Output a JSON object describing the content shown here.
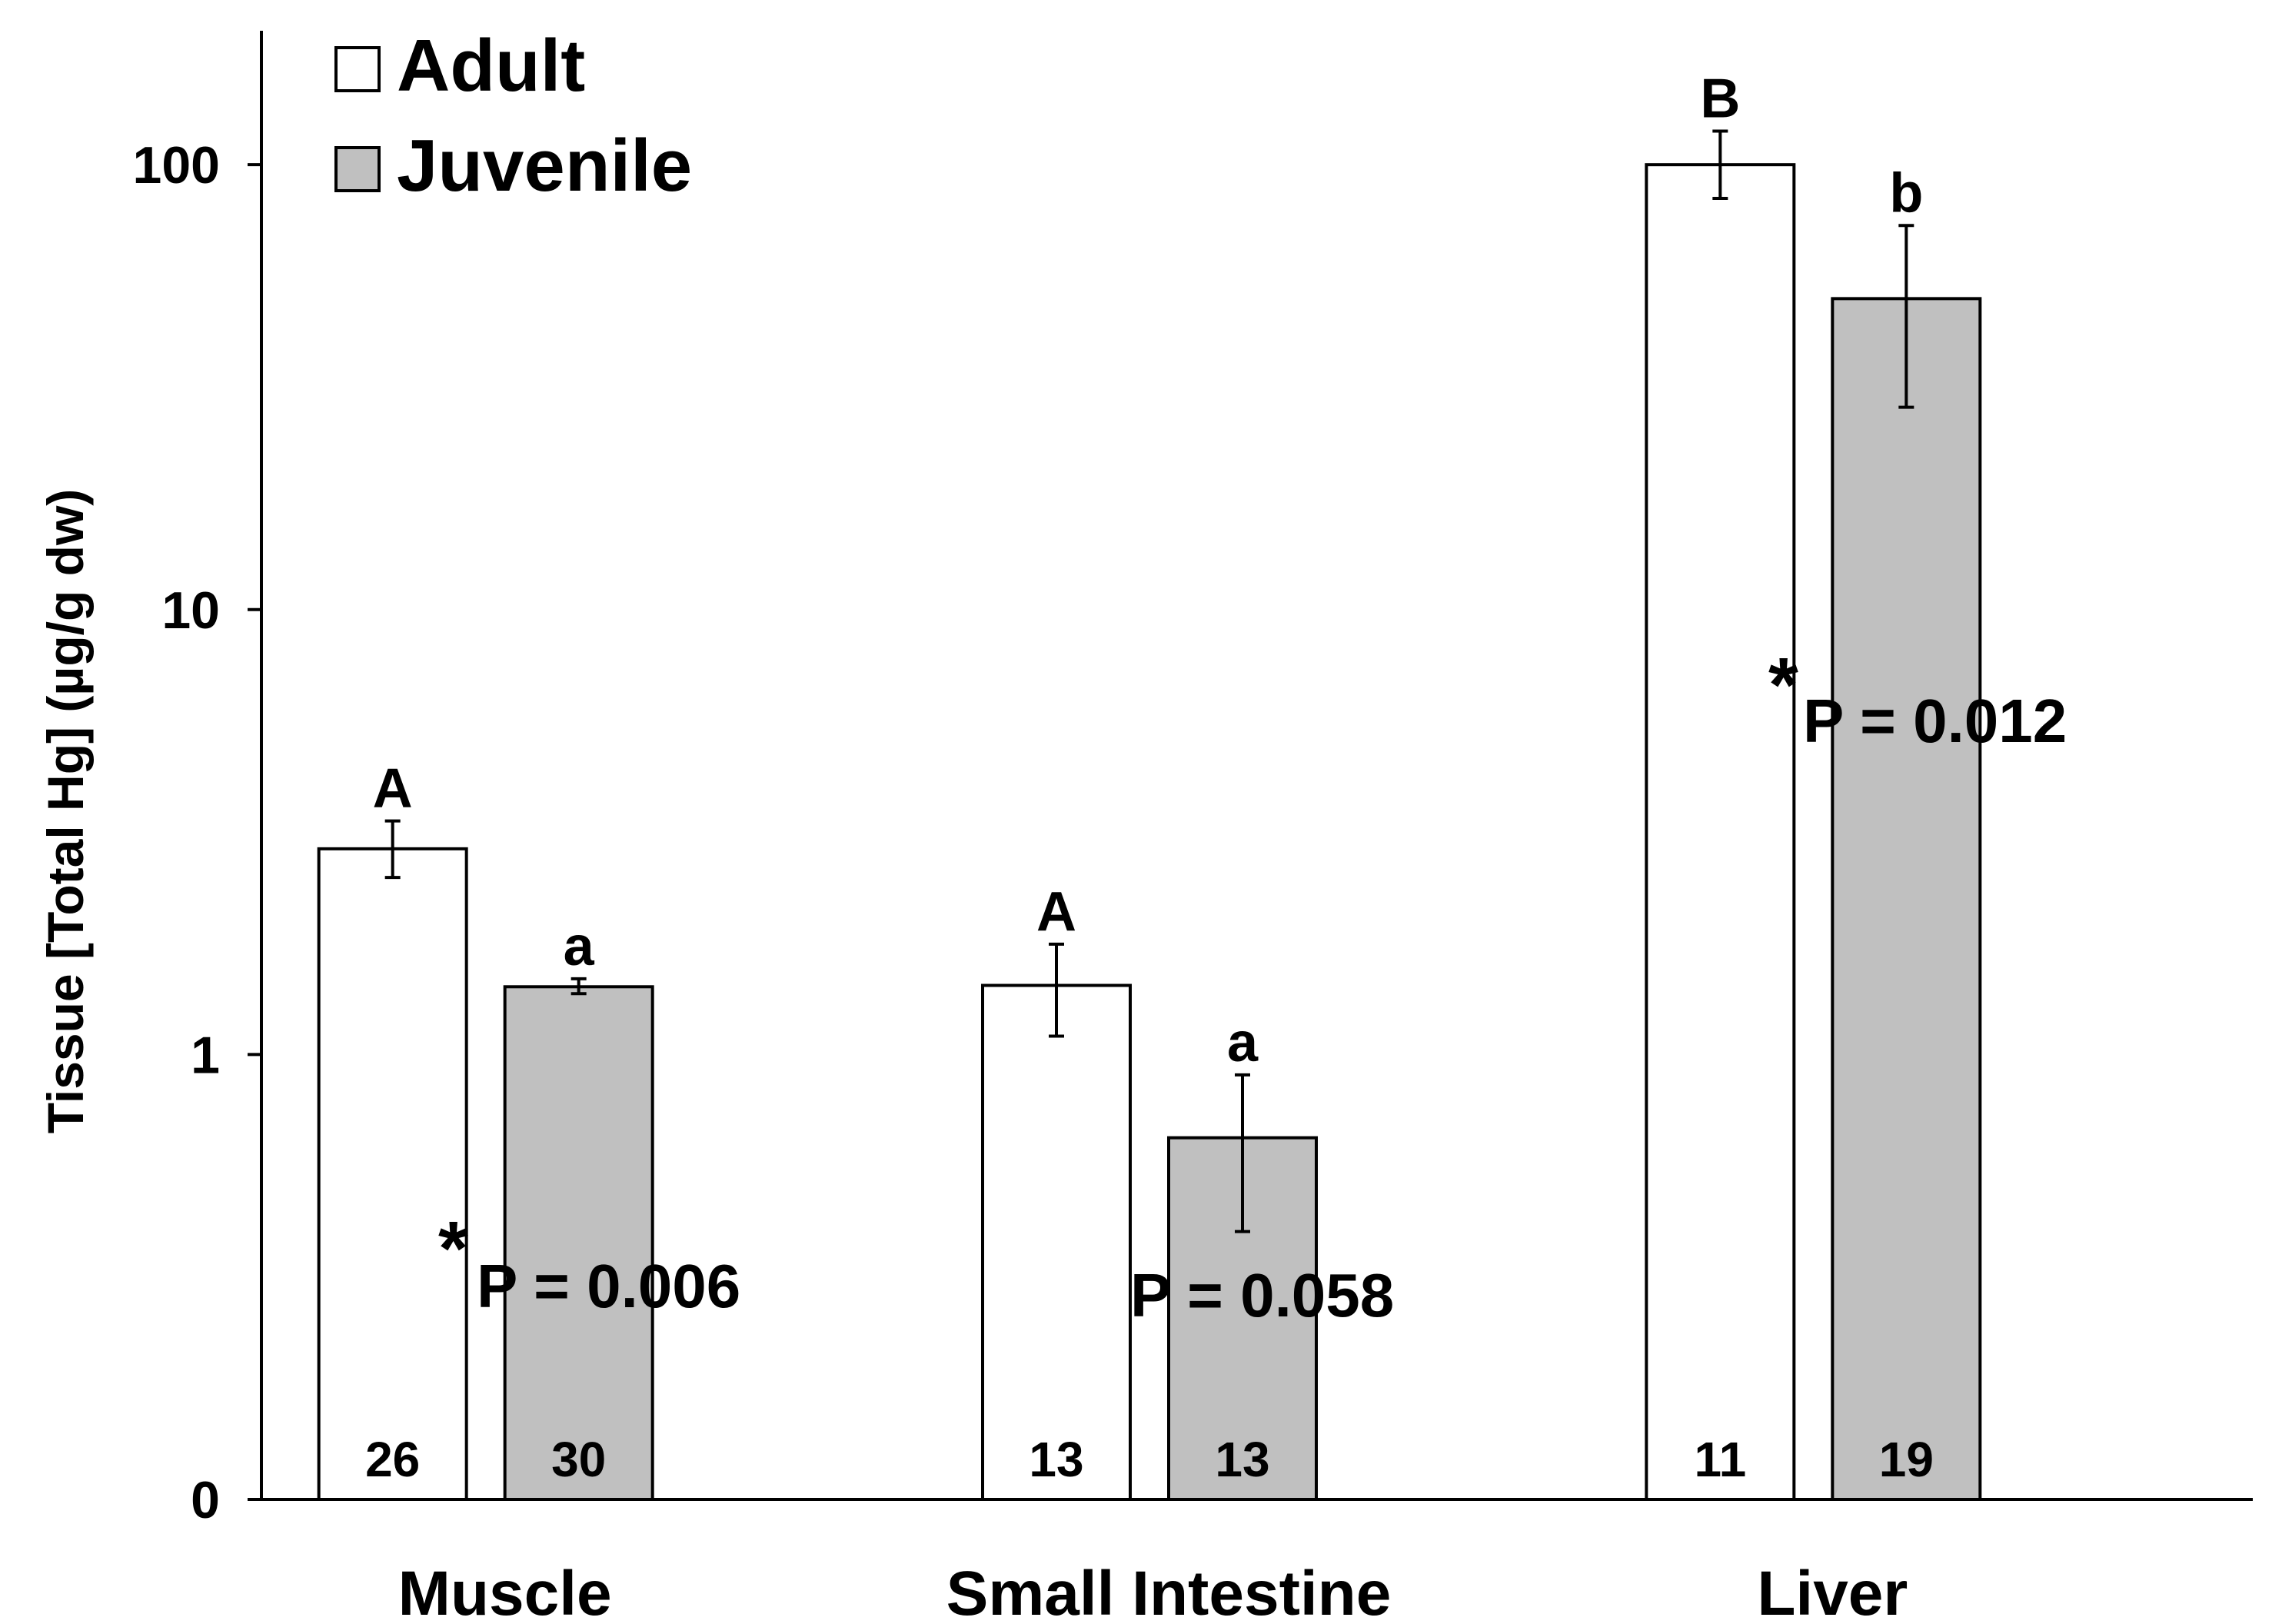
{
  "chart_data": {
    "type": "bar",
    "ylabel": "Tissue [Total Hg] (µg/g dw)",
    "yscale": "log",
    "ylim": [
      0.1,
      200
    ],
    "yticks": [
      {
        "value": 0.1,
        "label": "0"
      },
      {
        "value": 1,
        "label": "1"
      },
      {
        "value": 10,
        "label": "10"
      },
      {
        "value": 100,
        "label": "100"
      }
    ],
    "legend_position": "top-left",
    "categories": [
      "Muscle",
      "Small Intestine",
      "Liver"
    ],
    "series": [
      {
        "name": "Adult",
        "color": "#ffffff",
        "values": [
          2.9,
          1.43,
          100
        ],
        "err_low": [
          2.5,
          1.1,
          84
        ],
        "err_high": [
          3.35,
          1.77,
          119
        ],
        "letters": [
          "A",
          "A",
          "B"
        ],
        "n": [
          "26",
          "13",
          "11"
        ]
      },
      {
        "name": "Juvenile",
        "color": "#c0c0c0",
        "values": [
          1.42,
          0.65,
          50
        ],
        "err_low": [
          1.37,
          0.4,
          28.5
        ],
        "err_high": [
          1.48,
          0.9,
          73
        ],
        "letters": [
          "a",
          "a",
          "b"
        ],
        "n": [
          "30",
          "13",
          "19"
        ]
      }
    ],
    "annotations": [
      {
        "category": "Muscle",
        "star": "*",
        "text": "P = 0.006"
      },
      {
        "category": "Small Intestine",
        "star": "",
        "text": "P = 0.058"
      },
      {
        "category": "Liver",
        "star": "*",
        "text": "P = 0.012"
      }
    ]
  }
}
